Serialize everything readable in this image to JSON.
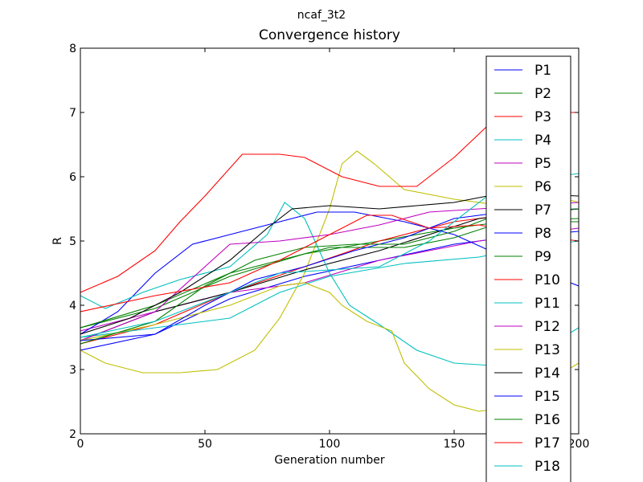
{
  "figure": {
    "suptitle": "ncaf_3t2"
  },
  "chart_data": {
    "type": "line",
    "title": "Convergence history",
    "xlabel": "Generation number",
    "ylabel": "R",
    "xlim": [
      0,
      200
    ],
    "ylim": [
      2,
      8
    ],
    "xticks": [
      "0",
      "50",
      "100",
      "150",
      "200"
    ],
    "yticks": [
      "2",
      "3",
      "4",
      "5",
      "6",
      "7",
      "8"
    ],
    "grid": false,
    "legend_position": "right, overlapping plot edge",
    "series": [
      {
        "name": "P1",
        "color": "#0000ff",
        "points": [
          [
            0,
            3.3
          ],
          [
            30,
            3.55
          ],
          [
            60,
            4.1
          ],
          [
            90,
            4.45
          ],
          [
            120,
            4.7
          ],
          [
            150,
            4.95
          ],
          [
            170,
            5.05
          ],
          [
            200,
            5.15
          ]
        ]
      },
      {
        "name": "P2",
        "color": "#008000",
        "points": [
          [
            0,
            3.65
          ],
          [
            30,
            3.95
          ],
          [
            60,
            4.45
          ],
          [
            90,
            4.8
          ],
          [
            120,
            5.0
          ],
          [
            150,
            5.2
          ],
          [
            170,
            5.3
          ],
          [
            200,
            5.3
          ]
        ]
      },
      {
        "name": "P3",
        "color": "#ff0000",
        "points": [
          [
            0,
            3.4
          ],
          [
            30,
            3.7
          ],
          [
            60,
            4.2
          ],
          [
            90,
            4.6
          ],
          [
            120,
            5.0
          ],
          [
            150,
            5.3
          ],
          [
            170,
            5.4
          ],
          [
            200,
            5.5
          ]
        ]
      },
      {
        "name": "P4",
        "color": "#00bfbf",
        "points": [
          [
            0,
            3.5
          ],
          [
            30,
            3.65
          ],
          [
            60,
            3.8
          ],
          [
            80,
            4.2
          ],
          [
            100,
            4.45
          ],
          [
            130,
            4.65
          ],
          [
            160,
            4.75
          ],
          [
            180,
            4.9
          ],
          [
            200,
            5.0
          ]
        ]
      },
      {
        "name": "P5",
        "color": "#bf00bf",
        "points": [
          [
            0,
            3.6
          ],
          [
            30,
            3.9
          ],
          [
            60,
            4.2
          ],
          [
            90,
            4.35
          ],
          [
            120,
            4.7
          ],
          [
            140,
            4.85
          ],
          [
            160,
            5.0
          ],
          [
            200,
            5.2
          ]
        ]
      },
      {
        "name": "P6",
        "color": "#bfbf00",
        "points": [
          [
            0,
            3.3
          ],
          [
            10,
            3.1
          ],
          [
            25,
            2.95
          ],
          [
            40,
            2.95
          ],
          [
            55,
            3.0
          ],
          [
            70,
            3.3
          ],
          [
            80,
            3.8
          ],
          [
            90,
            4.5
          ],
          [
            100,
            5.5
          ],
          [
            105,
            6.2
          ],
          [
            111,
            6.4
          ],
          [
            118,
            6.2
          ],
          [
            130,
            5.8
          ],
          [
            150,
            5.65
          ],
          [
            170,
            5.55
          ],
          [
            190,
            5.7
          ],
          [
            200,
            5.6
          ]
        ]
      },
      {
        "name": "P7",
        "color": "#000000",
        "points": [
          [
            0,
            3.45
          ],
          [
            30,
            3.9
          ],
          [
            60,
            4.2
          ],
          [
            90,
            4.55
          ],
          [
            120,
            4.85
          ],
          [
            140,
            5.1
          ],
          [
            160,
            5.35
          ],
          [
            200,
            5.5
          ]
        ]
      },
      {
        "name": "P8",
        "color": "#0000ff",
        "points": [
          [
            0,
            3.55
          ],
          [
            15,
            3.9
          ],
          [
            30,
            4.5
          ],
          [
            45,
            4.95
          ],
          [
            60,
            5.1
          ],
          [
            80,
            5.3
          ],
          [
            95,
            5.45
          ],
          [
            110,
            5.45
          ],
          [
            130,
            5.3
          ],
          [
            150,
            5.1
          ],
          [
            170,
            4.75
          ],
          [
            200,
            4.3
          ]
        ]
      },
      {
        "name": "P9",
        "color": "#008000",
        "points": [
          [
            0,
            3.65
          ],
          [
            30,
            4.0
          ],
          [
            60,
            4.5
          ],
          [
            80,
            4.7
          ],
          [
            100,
            4.9
          ],
          [
            130,
            4.9
          ],
          [
            150,
            5.05
          ],
          [
            170,
            5.3
          ],
          [
            200,
            5.35
          ]
        ]
      },
      {
        "name": "P10",
        "color": "#ff0000",
        "points": [
          [
            0,
            4.2
          ],
          [
            15,
            4.45
          ],
          [
            30,
            4.85
          ],
          [
            40,
            5.3
          ],
          [
            50,
            5.7
          ],
          [
            65,
            6.35
          ],
          [
            80,
            6.35
          ],
          [
            90,
            6.3
          ],
          [
            105,
            6.0
          ],
          [
            120,
            5.85
          ],
          [
            135,
            5.85
          ],
          [
            150,
            6.3
          ],
          [
            165,
            6.85
          ],
          [
            180,
            7.0
          ],
          [
            200,
            7.0
          ]
        ]
      },
      {
        "name": "P11",
        "color": "#00bfbf",
        "points": [
          [
            0,
            4.15
          ],
          [
            10,
            3.95
          ],
          [
            25,
            4.2
          ],
          [
            40,
            4.4
          ],
          [
            60,
            4.6
          ],
          [
            75,
            5.1
          ],
          [
            82,
            5.6
          ],
          [
            90,
            5.35
          ],
          [
            100,
            4.5
          ],
          [
            108,
            4.0
          ],
          [
            120,
            3.7
          ],
          [
            135,
            3.3
          ],
          [
            150,
            3.1
          ],
          [
            170,
            3.05
          ],
          [
            185,
            3.3
          ],
          [
            200,
            3.65
          ]
        ]
      },
      {
        "name": "P12",
        "color": "#bf00bf",
        "points": [
          [
            0,
            3.45
          ],
          [
            30,
            3.9
          ],
          [
            50,
            4.6
          ],
          [
            60,
            4.95
          ],
          [
            80,
            5.0
          ],
          [
            100,
            5.1
          ],
          [
            120,
            5.25
          ],
          [
            140,
            5.45
          ],
          [
            160,
            5.5
          ],
          [
            200,
            5.6
          ]
        ]
      },
      {
        "name": "P13",
        "color": "#bfbf00",
        "points": [
          [
            0,
            3.45
          ],
          [
            30,
            3.7
          ],
          [
            60,
            4.0
          ],
          [
            80,
            4.3
          ],
          [
            90,
            4.35
          ],
          [
            100,
            4.2
          ],
          [
            105,
            4.0
          ],
          [
            115,
            3.75
          ],
          [
            125,
            3.6
          ],
          [
            130,
            3.1
          ],
          [
            140,
            2.7
          ],
          [
            150,
            2.45
          ],
          [
            160,
            2.35
          ],
          [
            170,
            2.4
          ],
          [
            185,
            2.75
          ],
          [
            200,
            3.1
          ]
        ]
      },
      {
        "name": "P14",
        "color": "#000000",
        "points": [
          [
            0,
            3.55
          ],
          [
            20,
            3.8
          ],
          [
            40,
            4.2
          ],
          [
            60,
            4.7
          ],
          [
            75,
            5.2
          ],
          [
            85,
            5.5
          ],
          [
            100,
            5.55
          ],
          [
            120,
            5.5
          ],
          [
            135,
            5.55
          ],
          [
            150,
            5.6
          ],
          [
            170,
            5.75
          ],
          [
            200,
            5.7
          ]
        ]
      },
      {
        "name": "P15",
        "color": "#0000ff",
        "points": [
          [
            0,
            3.45
          ],
          [
            30,
            3.55
          ],
          [
            50,
            4.0
          ],
          [
            70,
            4.4
          ],
          [
            90,
            4.6
          ],
          [
            110,
            4.85
          ],
          [
            130,
            5.05
          ],
          [
            150,
            5.35
          ],
          [
            170,
            5.45
          ],
          [
            200,
            5.5
          ]
        ]
      },
      {
        "name": "P16",
        "color": "#008000",
        "points": [
          [
            0,
            3.4
          ],
          [
            30,
            3.75
          ],
          [
            50,
            4.3
          ],
          [
            70,
            4.7
          ],
          [
            90,
            4.9
          ],
          [
            110,
            4.95
          ],
          [
            130,
            4.95
          ],
          [
            150,
            5.15
          ],
          [
            170,
            5.45
          ],
          [
            200,
            5.5
          ]
        ]
      },
      {
        "name": "P17",
        "color": "#ff0000",
        "points": [
          [
            0,
            3.9
          ],
          [
            30,
            4.15
          ],
          [
            60,
            4.35
          ],
          [
            80,
            4.7
          ],
          [
            100,
            5.1
          ],
          [
            115,
            5.4
          ],
          [
            125,
            5.4
          ],
          [
            140,
            5.2
          ],
          [
            160,
            5.25
          ],
          [
            180,
            5.1
          ],
          [
            200,
            5.0
          ]
        ]
      },
      {
        "name": "P18",
        "color": "#00bfbf",
        "points": [
          [
            0,
            3.5
          ],
          [
            30,
            3.75
          ],
          [
            60,
            4.2
          ],
          [
            80,
            4.5
          ],
          [
            100,
            4.55
          ],
          [
            120,
            4.6
          ],
          [
            140,
            5.0
          ],
          [
            160,
            5.6
          ],
          [
            170,
            5.9
          ],
          [
            200,
            6.05
          ]
        ]
      }
    ]
  }
}
